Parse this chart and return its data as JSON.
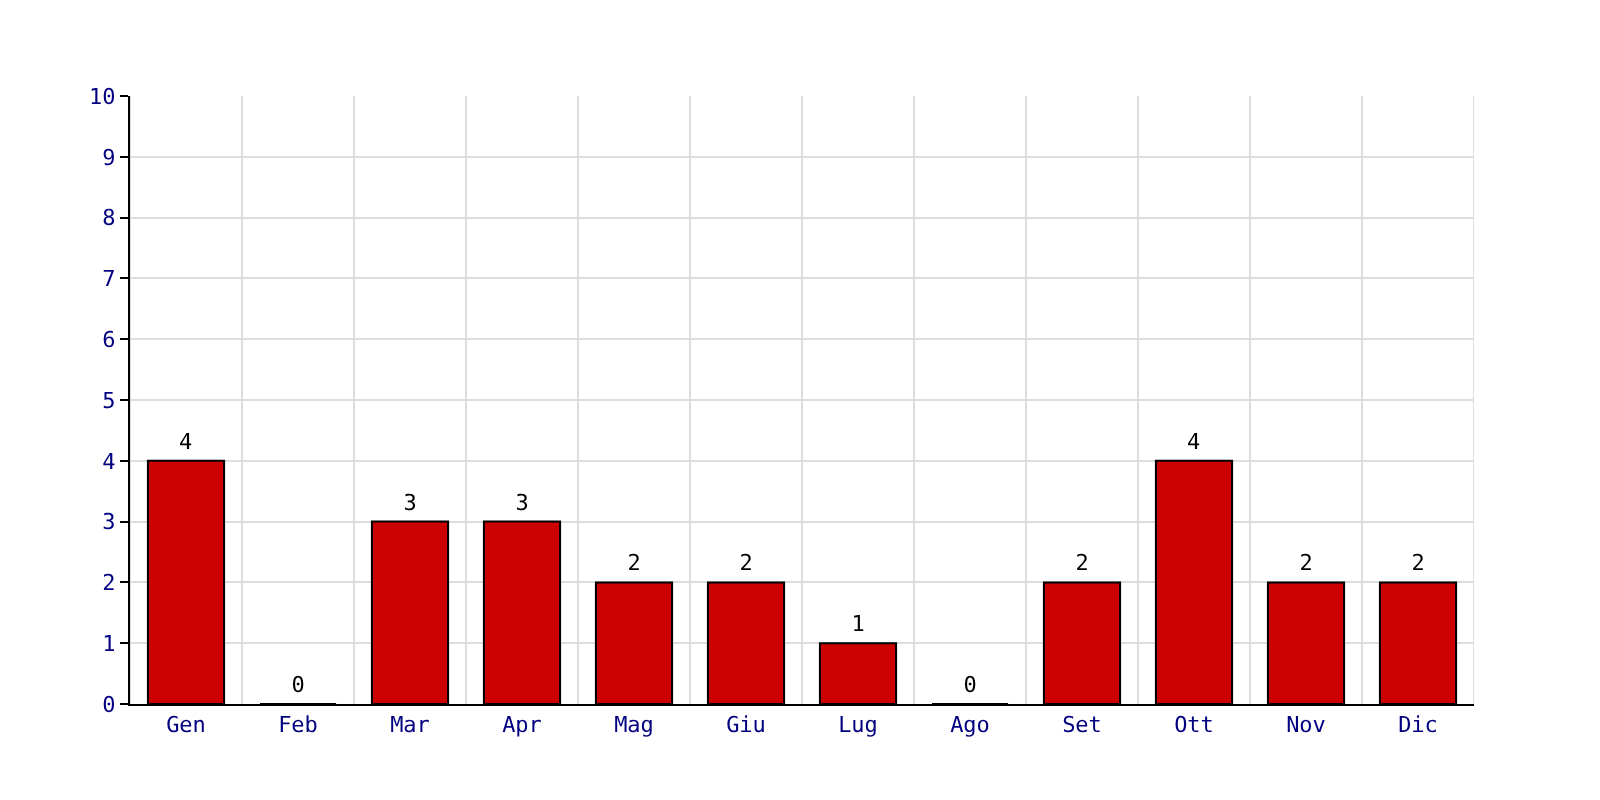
{
  "chart_data": {
    "type": "bar",
    "categories": [
      "Gen",
      "Feb",
      "Mar",
      "Apr",
      "Mag",
      "Giu",
      "Lug",
      "Ago",
      "Set",
      "Ott",
      "Nov",
      "Dic"
    ],
    "values": [
      4,
      0,
      3,
      3,
      2,
      2,
      1,
      0,
      2,
      4,
      2,
      2
    ],
    "color": "#cc0000",
    "ylim": [
      0,
      10
    ],
    "yticks": [
      0,
      1,
      2,
      3,
      4,
      5,
      6,
      7,
      8,
      9,
      10
    ],
    "grid": true,
    "data_labels": true
  }
}
